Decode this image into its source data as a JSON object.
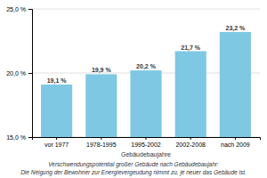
{
  "chart_data": {
    "type": "bar",
    "title": "Verschwendungspotential großer Gebäude nach Gebäudebaujahr:",
    "subtitle": "Die Neigung der Bewohner zur Energievergeudung nimmt zu, je neuer das Gebäude ist.",
    "xlabel": "Gebäudebaujahre",
    "categories": [
      "vor 1977",
      "1978-1995",
      "1995-2002",
      "2002-2008",
      "nach 2009"
    ],
    "values": [
      19.1,
      19.9,
      20.2,
      21.7,
      23.2
    ],
    "value_labels": [
      "19,1 %",
      "19,9 %",
      "20,2 %",
      "21,7 %",
      "23,2 %"
    ],
    "color": "#7ec8e3",
    "ylim": [
      15.0,
      25.0
    ],
    "yticks": [
      {
        "value": 15.0,
        "label": "15,0 %"
      },
      {
        "value": 20.0,
        "label": "20,0 %"
      },
      {
        "value": 25.0,
        "label": "25,0 %"
      }
    ],
    "grid": true
  }
}
